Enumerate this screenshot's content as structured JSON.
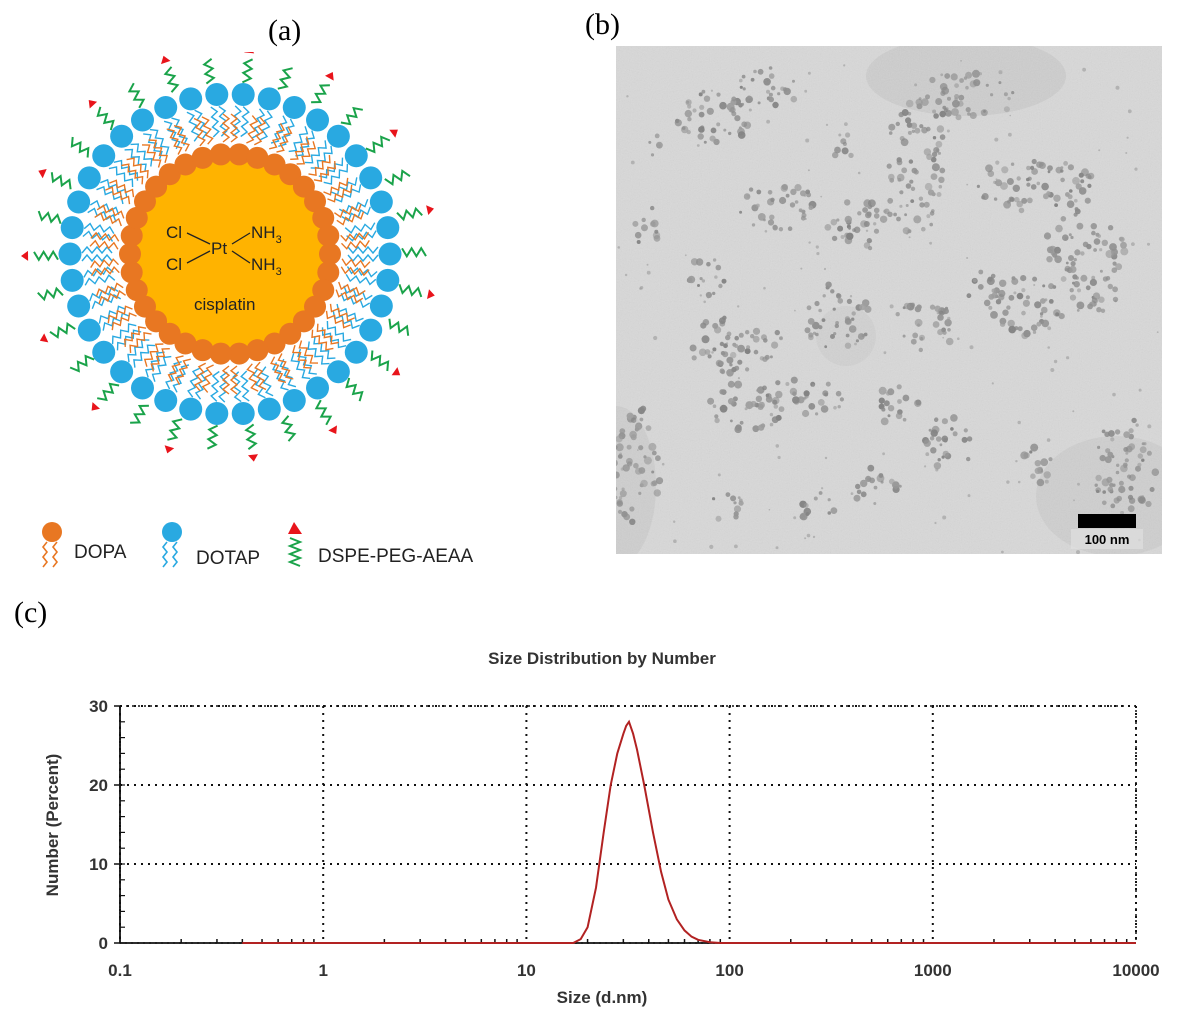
{
  "panels": {
    "a": "(a)",
    "b": "(b)",
    "c": "(c)"
  },
  "diagram": {
    "core_formula": {
      "cl1": "Cl",
      "cl2": "Cl",
      "pt": "Pt",
      "nh3_1": "NH",
      "nh3_2": "NH",
      "sub": "3"
    },
    "core_label": "cisplatin",
    "legend": [
      {
        "label": "DOPA",
        "color": "#e87722"
      },
      {
        "label": "DOTAP",
        "color": "#29a9e1"
      },
      {
        "label": "DSPE-PEG-AEAA",
        "color": "#1aa34a"
      }
    ],
    "colors": {
      "core": "#ffb300",
      "dopa": "#e87722",
      "dotap": "#29a9e1",
      "peg": "#1aa34a",
      "ligand": "#e8141b"
    }
  },
  "tem": {
    "scale_bar_label": "100 nm"
  },
  "chart_data": {
    "type": "line",
    "title": "Size Distribution by Number",
    "xlabel": "Size (d.nm)",
    "ylabel": "Number (Percent)",
    "xscale": "log",
    "xlim": [
      0.1,
      10000
    ],
    "ylim": [
      0,
      30
    ],
    "xticks": [
      0.1,
      1,
      10,
      100,
      1000,
      10000
    ],
    "xtick_labels": [
      "0.1",
      "1",
      "10",
      "100",
      "1000",
      "10000"
    ],
    "yticks": [
      0,
      10,
      20,
      30
    ],
    "ytick_labels": [
      "0",
      "10",
      "20",
      "30"
    ],
    "grid": true,
    "line_color": "#b22222",
    "series": [
      {
        "x": [
          0.4,
          10,
          17,
          18.5,
          20,
          22,
          24,
          26,
          28,
          30,
          31,
          32,
          33.5,
          35,
          38,
          42,
          46,
          50,
          55,
          60,
          65,
          70,
          80,
          90,
          100,
          10000
        ],
        "y": [
          0,
          0,
          0,
          0.5,
          2,
          7,
          14,
          20,
          24,
          26.5,
          27.5,
          28,
          26.5,
          24.5,
          20,
          14,
          9,
          5.5,
          3,
          1.6,
          0.8,
          0.4,
          0.1,
          0,
          0,
          0
        ]
      }
    ]
  }
}
